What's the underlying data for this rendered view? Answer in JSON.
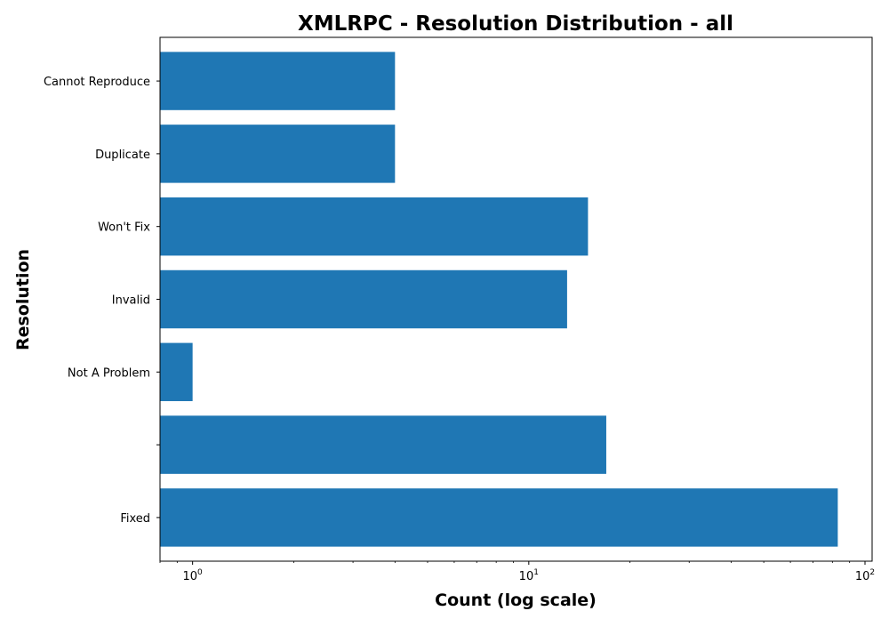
{
  "chart_data": {
    "type": "bar",
    "orientation": "horizontal",
    "title": "XMLRPC - Resolution Distribution - all",
    "xlabel": "Count (log scale)",
    "ylabel": "Resolution",
    "x_scale": "log",
    "xlim": [
      0.8,
      105
    ],
    "x_ticks": [
      1,
      10,
      100
    ],
    "x_tick_labels": [
      "10^0",
      "10^1",
      "10^2"
    ],
    "categories": [
      "Fixed",
      "",
      "Not A Problem",
      "Invalid",
      "Won't Fix",
      "Duplicate",
      "Cannot Reproduce"
    ],
    "values": [
      83,
      17,
      1,
      13,
      15,
      4,
      4
    ],
    "colors": {
      "bar": "#1f77b4",
      "axes": "#000000",
      "background": "#ffffff"
    },
    "grid": false,
    "legend": "none"
  }
}
